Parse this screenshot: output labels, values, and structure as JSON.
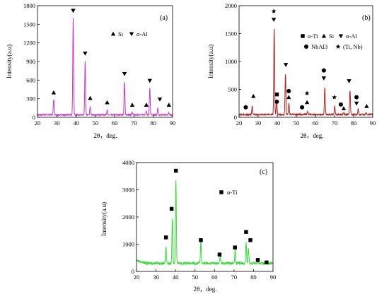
{
  "chart_data": [
    {
      "type": "line",
      "panel_label": "(a)",
      "xlabel": "2θ，deg.",
      "ylabel": "Intensity(a.u)",
      "xlim": [
        20,
        90
      ],
      "ylim": [
        0,
        1800
      ],
      "xticks": [
        20,
        30,
        40,
        50,
        60,
        70,
        80,
        90
      ],
      "yticks": [
        0,
        300,
        600,
        900,
        1200,
        1500,
        1800
      ],
      "color": "#c838c8",
      "baseline": 40,
      "noise": 10,
      "peaks": [
        {
          "x": 28.4,
          "y": 250
        },
        {
          "x": 38.5,
          "y": 1560
        },
        {
          "x": 44.7,
          "y": 860
        },
        {
          "x": 47.3,
          "y": 140
        },
        {
          "x": 56.1,
          "y": 80
        },
        {
          "x": 65.1,
          "y": 530
        },
        {
          "x": 69.1,
          "y": 40
        },
        {
          "x": 76.4,
          "y": 60
        },
        {
          "x": 78.2,
          "y": 430
        },
        {
          "x": 82.4,
          "y": 120
        },
        {
          "x": 88.0,
          "y": 40
        }
      ],
      "markers": [
        {
          "x": 28.4,
          "y": 400,
          "shape": "triangle-up"
        },
        {
          "x": 38.5,
          "y": 1720,
          "shape": "triangle-down"
        },
        {
          "x": 44.7,
          "y": 1030,
          "shape": "triangle-down"
        },
        {
          "x": 47.3,
          "y": 310,
          "shape": "triangle-up"
        },
        {
          "x": 56.1,
          "y": 240,
          "shape": "triangle-up"
        },
        {
          "x": 65.1,
          "y": 700,
          "shape": "triangle-down"
        },
        {
          "x": 69.1,
          "y": 200,
          "shape": "triangle-up"
        },
        {
          "x": 76.4,
          "y": 200,
          "shape": "triangle-up"
        },
        {
          "x": 78.2,
          "y": 590,
          "shape": "triangle-down"
        },
        {
          "x": 83.4,
          "y": 290,
          "shape": "triangle-down"
        },
        {
          "x": 88.1,
          "y": 200,
          "shape": "triangle-up"
        }
      ],
      "legend": {
        "entries": [
          {
            "shape": "triangle-up",
            "label": "Si"
          },
          {
            "shape": "triangle-down",
            "label": "α-Al"
          }
        ]
      }
    },
    {
      "type": "line",
      "panel_label": "(b)",
      "xlabel": "2θ，deg.",
      "ylabel": "Intensity(a.u)",
      "xlim": [
        20,
        90
      ],
      "ylim": [
        0,
        2000
      ],
      "xticks": [
        20,
        30,
        40,
        50,
        60,
        70,
        80,
        90
      ],
      "yticks": [
        0,
        500,
        1000,
        1500,
        2000
      ],
      "color": "#b02222",
      "baseline": 50,
      "noise": 12,
      "peaks": [
        {
          "x": 26.9,
          "y": 150
        },
        {
          "x": 38.4,
          "y": 1540
        },
        {
          "x": 39.7,
          "y": 250
        },
        {
          "x": 44.3,
          "y": 720
        },
        {
          "x": 46.1,
          "y": 200
        },
        {
          "x": 55.9,
          "y": 60
        },
        {
          "x": 64.9,
          "y": 490
        },
        {
          "x": 70.1,
          "y": 150
        },
        {
          "x": 74.8,
          "y": 40
        },
        {
          "x": 78.1,
          "y": 430
        },
        {
          "x": 82.4,
          "y": 100
        },
        {
          "x": 86.5,
          "y": 30
        }
      ],
      "markers": [
        {
          "x": 23.5,
          "y": 180,
          "shape": "circle"
        },
        {
          "x": 27.5,
          "y": 380,
          "shape": "triangle-up"
        },
        {
          "x": 38.2,
          "y": 1750,
          "shape": "triangle-down"
        },
        {
          "x": 38.2,
          "y": 1900,
          "shape": "star"
        },
        {
          "x": 39.8,
          "y": 410,
          "shape": "square"
        },
        {
          "x": 39.8,
          "y": 280,
          "shape": "circle"
        },
        {
          "x": 44.5,
          "y": 940,
          "shape": "triangle-down"
        },
        {
          "x": 46.0,
          "y": 470,
          "shape": "circle"
        },
        {
          "x": 46.0,
          "y": 360,
          "shape": "triangle-up"
        },
        {
          "x": 53.0,
          "y": 180,
          "shape": "circle"
        },
        {
          "x": 55.6,
          "y": 430,
          "shape": "star"
        },
        {
          "x": 55.6,
          "y": 270,
          "shape": "triangle-up"
        },
        {
          "x": 64.4,
          "y": 840,
          "shape": "circle"
        },
        {
          "x": 64.4,
          "y": 700,
          "shape": "triangle-down"
        },
        {
          "x": 69.9,
          "y": 360,
          "shape": "star"
        },
        {
          "x": 73.3,
          "y": 230,
          "shape": "circle"
        },
        {
          "x": 74.8,
          "y": 160,
          "shape": "triangle-up"
        },
        {
          "x": 77.6,
          "y": 650,
          "shape": "triangle-down"
        },
        {
          "x": 81.5,
          "y": 360,
          "shape": "circle"
        },
        {
          "x": 81.5,
          "y": 250,
          "shape": "triangle-down"
        },
        {
          "x": 86.8,
          "y": 200,
          "shape": "triangle-up"
        }
      ],
      "legend": {
        "entries": [
          {
            "shape": "square",
            "label": "α-Ti"
          },
          {
            "shape": "triangle-up",
            "label": "Si"
          },
          {
            "shape": "triangle-down",
            "label": "α-Al"
          },
          {
            "shape": "circle",
            "label": "NbAl3"
          },
          {
            "shape": "star",
            "label": "(Ti, Nb)"
          }
        ]
      }
    },
    {
      "type": "line",
      "panel_label": "(c)",
      "xlabel": "2θ，deg.",
      "ylabel": "Intensity(a.u)",
      "xlim": [
        20,
        90
      ],
      "ylim": [
        0,
        4000
      ],
      "xticks": [
        20,
        30,
        40,
        50,
        60,
        70,
        80,
        90
      ],
      "yticks": [
        0,
        1000,
        2000,
        3000,
        4000
      ],
      "color": "#33dd33",
      "baseline": 300,
      "noise": 45,
      "peaks": [
        {
          "x": 35.1,
          "y": 620
        },
        {
          "x": 38.4,
          "y": 1650
        },
        {
          "x": 40.2,
          "y": 3080
        },
        {
          "x": 53.0,
          "y": 820
        },
        {
          "x": 62.9,
          "y": 250
        },
        {
          "x": 70.6,
          "y": 520
        },
        {
          "x": 76.2,
          "y": 770
        },
        {
          "x": 77.4,
          "y": 560
        },
        {
          "x": 82.3,
          "y": 120
        },
        {
          "x": 86.8,
          "y": 80
        }
      ],
      "markers": [
        {
          "x": 35.1,
          "y": 1250,
          "shape": "square"
        },
        {
          "x": 38.0,
          "y": 2300,
          "shape": "square"
        },
        {
          "x": 40.2,
          "y": 3700,
          "shape": "square"
        },
        {
          "x": 53.0,
          "y": 1150,
          "shape": "square"
        },
        {
          "x": 62.6,
          "y": 620,
          "shape": "square"
        },
        {
          "x": 70.5,
          "y": 880,
          "shape": "square"
        },
        {
          "x": 76.2,
          "y": 1450,
          "shape": "square"
        },
        {
          "x": 78.4,
          "y": 1150,
          "shape": "square"
        },
        {
          "x": 82.2,
          "y": 420,
          "shape": "square"
        },
        {
          "x": 86.7,
          "y": 330,
          "shape": "square"
        }
      ],
      "legend": {
        "entries": [
          {
            "shape": "square",
            "label": "α-Ti"
          }
        ]
      }
    }
  ]
}
